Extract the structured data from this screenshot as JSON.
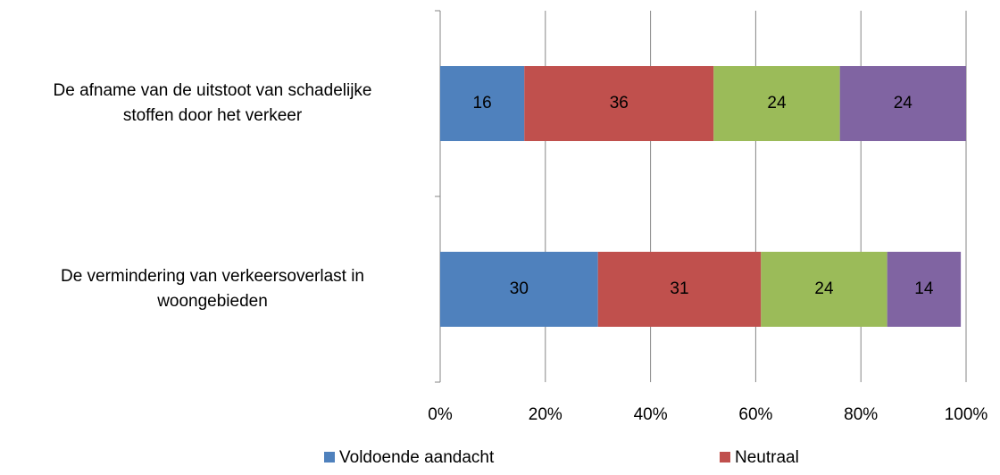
{
  "chart_data": {
    "type": "stacked_bar_horizontal",
    "categories": [
      "De afname van de uitstoot van schadelijke stoffen door het verkeer",
      "De vermindering van verkeersoverlast in woongebieden"
    ],
    "series": [
      {
        "name": "Voldoende aandacht",
        "color": "#4f81bd",
        "values": [
          16,
          30
        ]
      },
      {
        "name": "Neutraal",
        "color": "#c0504d",
        "values": [
          36,
          31
        ]
      },
      {
        "color": "#9bbb59",
        "values": [
          24,
          24
        ]
      },
      {
        "color": "#8064a2",
        "values": [
          24,
          14
        ]
      }
    ],
    "xlim": [
      0,
      100
    ],
    "xticks": [
      {
        "value": 0,
        "label": "0%"
      },
      {
        "value": 20,
        "label": "20%"
      },
      {
        "value": 40,
        "label": "40%"
      },
      {
        "value": 60,
        "label": "60%"
      },
      {
        "value": 80,
        "label": "80%"
      },
      {
        "value": 100,
        "label": "100%"
      }
    ],
    "grid": true
  }
}
